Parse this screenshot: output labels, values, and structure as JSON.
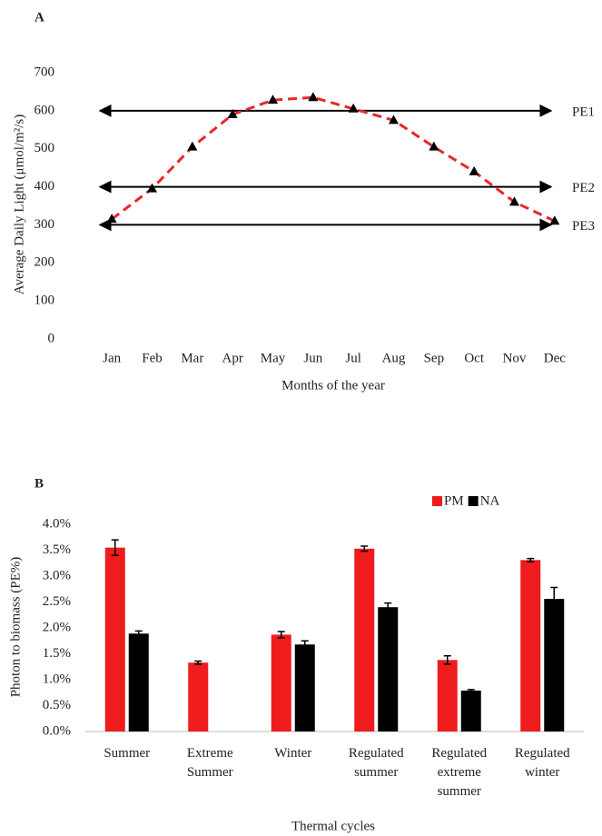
{
  "chart_data": [
    {
      "type": "line",
      "panel": "A",
      "y_label": "Average Daily Light (μmol/m²/s)",
      "x_label": "Months of the year",
      "categories": [
        "Jan",
        "Feb",
        "Mar",
        "Apr",
        "May",
        "Jun",
        "Jul",
        "Aug",
        "Sep",
        "Oct",
        "Nov",
        "Dec"
      ],
      "values": [
        315,
        395,
        505,
        590,
        628,
        635,
        605,
        575,
        505,
        440,
        360,
        310
      ],
      "color": "#e8262a",
      "marker_color": "#000000",
      "ylim": [
        0,
        700
      ],
      "yticks": [
        0,
        100,
        200,
        300,
        400,
        500,
        600,
        700
      ],
      "reference_lines": [
        {
          "label": "PE1",
          "value": 600
        },
        {
          "label": "PE2",
          "value": 400
        },
        {
          "label": "PE3",
          "value": 300
        }
      ]
    },
    {
      "type": "bar",
      "panel": "B",
      "y_label": "Photon to biomass (PE%)",
      "x_label": "Thermal cycles",
      "categories": [
        "Summer",
        "Extreme Summer",
        "Winter",
        "Regulated summer",
        "Regulated extreme summer",
        "Regulated winter"
      ],
      "series": [
        {
          "name": "PM",
          "color": "#ee1c1c",
          "values": [
            3.55,
            1.33,
            1.87,
            3.53,
            1.38,
            3.31
          ],
          "errors": [
            0.15,
            0.03,
            0.06,
            0.05,
            0.08,
            0.03
          ]
        },
        {
          "name": "NA",
          "color": "#000000",
          "values": [
            1.89,
            null,
            1.68,
            2.4,
            0.79,
            2.56
          ],
          "errors": [
            0.05,
            null,
            0.07,
            0.08,
            0.02,
            0.22
          ]
        }
      ],
      "ylim": [
        0,
        4
      ],
      "yticks": [
        {
          "value": 0,
          "label": "0.0%"
        },
        {
          "value": 0.5,
          "label": "0.5%"
        },
        {
          "value": 1,
          "label": "1.0%"
        },
        {
          "value": 1.5,
          "label": "1.5%"
        },
        {
          "value": 2,
          "label": "2.0%"
        },
        {
          "value": 2.5,
          "label": "2.5%"
        },
        {
          "value": 3,
          "label": "3.0%"
        },
        {
          "value": 3.5,
          "label": "3.5%"
        },
        {
          "value": 4,
          "label": "4.0%"
        }
      ],
      "legend": "top-right"
    }
  ]
}
